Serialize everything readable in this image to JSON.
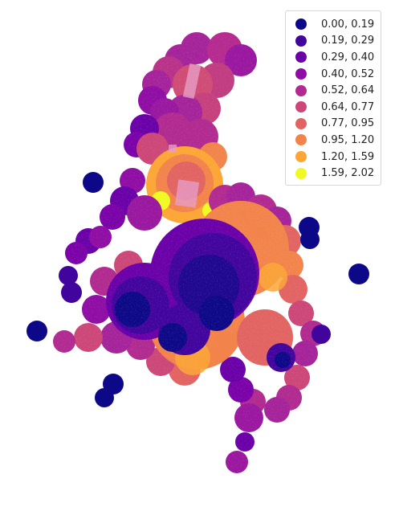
{
  "map": {
    "colormap": "plasma",
    "legend_placement": "top-right",
    "legend": [
      {
        "label": "0.00, 0.19",
        "color": "#0d0887"
      },
      {
        "label": "0.19, 0.29",
        "color": "#41049d"
      },
      {
        "label": "0.29, 0.40",
        "color": "#6a00a8"
      },
      {
        "label": "0.40, 0.52",
        "color": "#8f0da4"
      },
      {
        "label": "0.52, 0.64",
        "color": "#b12a90"
      },
      {
        "label": "0.64, 0.77",
        "color": "#cc4778"
      },
      {
        "label": "0.77, 0.95",
        "color": "#e16462"
      },
      {
        "label": "0.95, 1.20",
        "color": "#f2844b"
      },
      {
        "label": "1.20, 1.59",
        "color": "#fca636"
      },
      {
        "label": "1.59, 2.02",
        "color": "#f0f921"
      }
    ]
  }
}
